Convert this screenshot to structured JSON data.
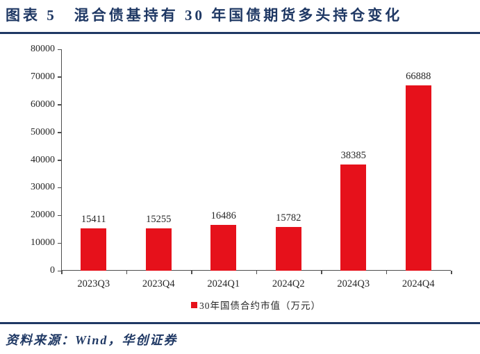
{
  "header": {
    "title": "图表 5　混合债基持有 30 年国债期货多头持仓变化"
  },
  "chart_data": {
    "type": "bar",
    "title": "图表 5　混合债基持有 30 年国债期货多头持仓变化",
    "categories": [
      "2023Q3",
      "2023Q4",
      "2024Q1",
      "2024Q2",
      "2024Q3",
      "2024Q4"
    ],
    "values": [
      15411,
      15255,
      16486,
      15782,
      38385,
      66888
    ],
    "data_labels": [
      15411,
      15255,
      16486,
      15782,
      38385,
      66888
    ],
    "xlabel": "",
    "ylabel": "",
    "ylim": [
      0,
      80000
    ],
    "yticks": [
      0,
      10000,
      20000,
      30000,
      40000,
      50000,
      60000,
      70000,
      80000
    ],
    "grid": false,
    "legend": "30年国债合约市值（万元）",
    "legend_position": "bottom",
    "bar_color": "#e6111b"
  },
  "footer": {
    "source": "资料来源：Wind，华创证券"
  },
  "colors": {
    "accent_navy": "#1f3864",
    "bar_red": "#e6111b",
    "axis_line": "#4d4d4d",
    "text": "#262626"
  }
}
